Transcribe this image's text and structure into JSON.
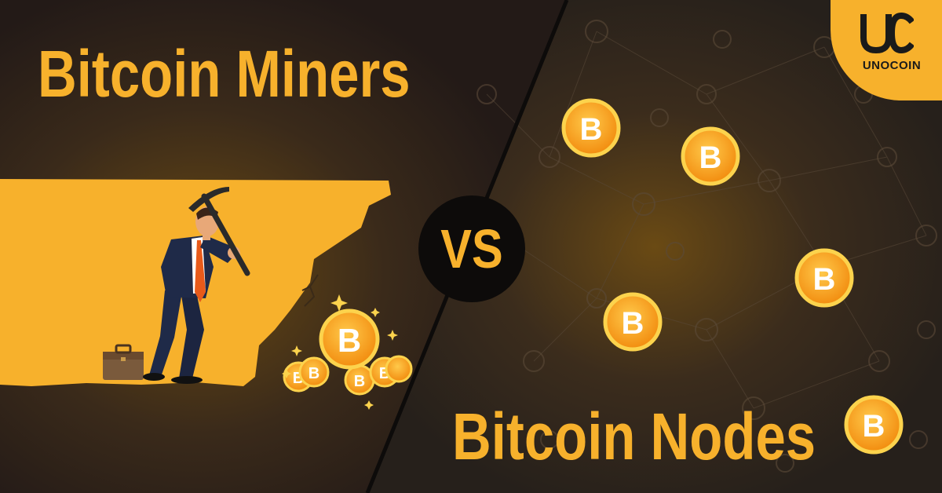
{
  "left_title": "Bitcoin Miners",
  "right_title": "Bitcoin Nodes",
  "vs_label": "VS",
  "brand": {
    "logo_letters": "UC",
    "name": "UNOCOIN"
  },
  "coin_symbol": "B",
  "colors": {
    "gold": "#f7b12c",
    "dark_bg": "#231a17",
    "coin_face": "#f5a623",
    "coin_rim": "#fcd34d"
  },
  "icons": [
    "pickaxe-icon",
    "briefcase-icon",
    "bitcoin-coin-icon",
    "sparkle-icon"
  ]
}
